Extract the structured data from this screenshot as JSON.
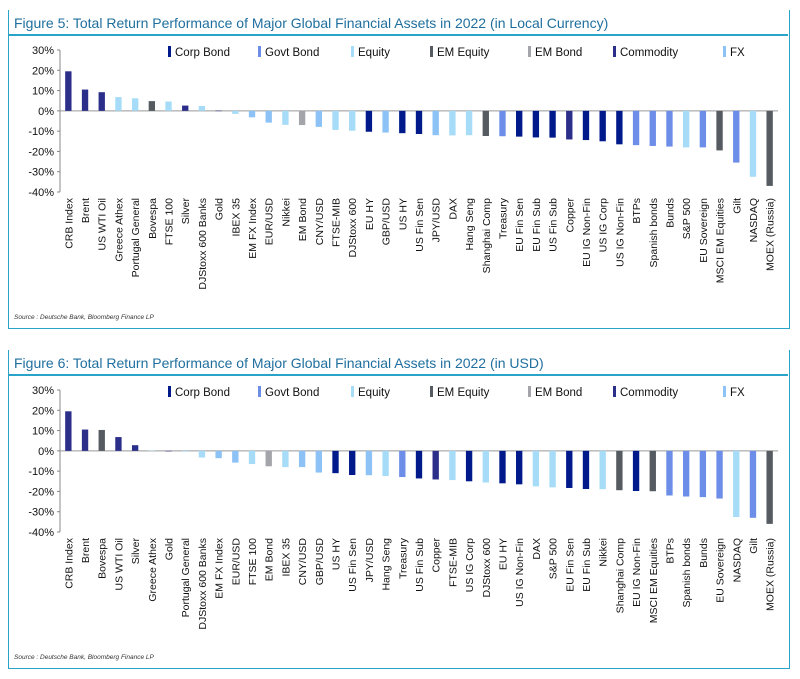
{
  "legend_colors": {
    "Corp Bond": "#001a8c",
    "Govt Bond": "#6d8ee8",
    "Equity": "#a6dcf7",
    "EM Equity": "#555b61",
    "EM Bond": "#a3a5ab",
    "Commodity": "#2c2f8a",
    "FX": "#8cc2f5"
  },
  "chart_data": [
    {
      "type": "bar",
      "title": "Figure 5: Total Return Performance of Major Global Financial Assets in 2022 (in Local Currency)",
      "source": "Source : Deutsche Bank, Bloomberg Finance LP",
      "ylim": [
        -40,
        30
      ],
      "yticks": [
        "30%",
        "20%",
        "10%",
        "0%",
        "-10%",
        "-20%",
        "-30%",
        "-40%"
      ],
      "legend": [
        "Corp Bond",
        "Govt Bond",
        "Equity",
        "EM Equity",
        "EM Bond",
        "Commodity",
        "FX"
      ],
      "categories": [
        "CRB Index",
        "Brent",
        "US WTI Oil",
        "Greece Athex",
        "Portugal General",
        "Bovespa",
        "FTSE 100",
        "Silver",
        "DJStoxx 600 Banks",
        "Gold",
        "IBEX 35",
        "EM FX Index",
        "EUR/USD",
        "Nikkei",
        "EM Bond",
        "CNY/USD",
        "FTSE-MIB",
        "DJStoxx 600",
        "EU HY",
        "GBP/USD",
        "US HY",
        "US Fin Sen",
        "JPY/USD",
        "DAX",
        "Hang Seng",
        "Shanghai Comp",
        "Treasury",
        "EU Fin Sen",
        "EU Fin Sub",
        "US Fin Sub",
        "Copper",
        "EU IG Non-Fin",
        "US IG Corp",
        "US IG Non-Fin",
        "BTPs",
        "Spanish bonds",
        "Bunds",
        "S&P 500",
        "EU Sovereign",
        "MSCI EM Equities",
        "Gilt",
        "NASDAQ",
        "MOEX (Russia)"
      ],
      "values": [
        19.5,
        10.5,
        9.2,
        6.8,
        6.2,
        4.8,
        4.6,
        2.6,
        2.4,
        0.1,
        -1.5,
        -3.2,
        -5.8,
        -6.9,
        -7.0,
        -7.9,
        -9.4,
        -9.8,
        -10.3,
        -10.7,
        -11.0,
        -11.4,
        -12.0,
        -12.1,
        -12.0,
        -12.4,
        -12.5,
        -12.7,
        -13.1,
        -13.2,
        -14.1,
        -14.4,
        -15.0,
        -16.5,
        -16.9,
        -17.3,
        -17.6,
        -18.0,
        -18.0,
        -19.5,
        -25.5,
        -32.5,
        -37.0
      ],
      "groups": [
        "Commodity",
        "Commodity",
        "Commodity",
        "Equity",
        "Equity",
        "EM Equity",
        "Equity",
        "Commodity",
        "Equity",
        "Commodity",
        "Equity",
        "FX",
        "FX",
        "Equity",
        "EM Bond",
        "FX",
        "Equity",
        "Equity",
        "Corp Bond",
        "FX",
        "Corp Bond",
        "Corp Bond",
        "FX",
        "Equity",
        "Equity",
        "EM Equity",
        "Govt Bond",
        "Corp Bond",
        "Corp Bond",
        "Corp Bond",
        "Commodity",
        "Corp Bond",
        "Corp Bond",
        "Corp Bond",
        "Govt Bond",
        "Govt Bond",
        "Govt Bond",
        "Equity",
        "Govt Bond",
        "EM Equity",
        "Govt Bond",
        "Equity",
        "EM Equity"
      ]
    },
    {
      "type": "bar",
      "title": "Figure 6: Total Return Performance of Major Global Financial Assets in 2022 (in USD)",
      "source": "Source : Deutsche Bank, Bloomberg Finance LP",
      "ylim": [
        -40,
        30
      ],
      "yticks": [
        "30%",
        "20%",
        "10%",
        "0%",
        "-10%",
        "-20%",
        "-30%",
        "-40%"
      ],
      "legend": [
        "Corp Bond",
        "Govt Bond",
        "Equity",
        "EM Equity",
        "EM Bond",
        "Commodity",
        "FX"
      ],
      "categories": [
        "CRB Index",
        "Brent",
        "Bovespa",
        "US WTI Oil",
        "Silver",
        "Greece Athex",
        "Gold",
        "Portugal General",
        "DJStoxx 600 Banks",
        "EM FX Index",
        "EUR/USD",
        "FTSE 100",
        "EM Bond",
        "IBEX 35",
        "CNY/USD",
        "GBP/USD",
        "US HY",
        "US Fin Sen",
        "JPY/USD",
        "Hang Seng",
        "Treasury",
        "US Fin Sub",
        "Copper",
        "FTSE-MIB",
        "US IG Corp",
        "DJStoxx 600",
        "EU HY",
        "US IG Non-Fin",
        "DAX",
        "S&P 500",
        "EU Fin Sen",
        "EU Fin Sub",
        "Nikkei",
        "Shanghai Comp",
        "EU IG Non-Fin",
        "MSCI EM Equities",
        "BTPs",
        "Spanish bonds",
        "Bunds",
        "EU Sovereign",
        "NASDAQ",
        "Gilt",
        "MOEX (Russia)"
      ],
      "values": [
        19.5,
        10.5,
        10.3,
        6.8,
        2.8,
        0.2,
        -0.1,
        -0.4,
        -3.3,
        -3.6,
        -5.8,
        -6.5,
        -7.6,
        -8.0,
        -8.0,
        -10.7,
        -11.0,
        -11.9,
        -12.0,
        -12.4,
        -12.9,
        -13.6,
        -14.1,
        -14.4,
        -15.0,
        -15.6,
        -16.0,
        -16.5,
        -17.5,
        -18.0,
        -18.3,
        -18.8,
        -18.9,
        -19.4,
        -19.8,
        -19.9,
        -22.0,
        -22.5,
        -22.8,
        -23.5,
        -32.6,
        -33.0,
        -36.0
      ],
      "groups": [
        "Commodity",
        "Commodity",
        "EM Equity",
        "Commodity",
        "Commodity",
        "Equity",
        "Commodity",
        "Equity",
        "Equity",
        "FX",
        "FX",
        "Equity",
        "EM Bond",
        "Equity",
        "FX",
        "FX",
        "Corp Bond",
        "Corp Bond",
        "FX",
        "Equity",
        "Govt Bond",
        "Corp Bond",
        "Commodity",
        "Equity",
        "Corp Bond",
        "Equity",
        "Corp Bond",
        "Corp Bond",
        "Equity",
        "Equity",
        "Corp Bond",
        "Corp Bond",
        "Equity",
        "EM Equity",
        "Corp Bond",
        "EM Equity",
        "Govt Bond",
        "Govt Bond",
        "Govt Bond",
        "Govt Bond",
        "Equity",
        "Govt Bond",
        "EM Equity"
      ]
    }
  ]
}
